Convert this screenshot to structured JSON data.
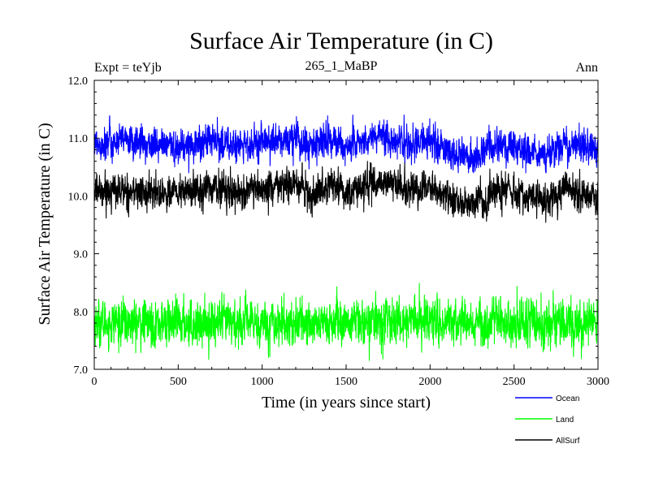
{
  "chart_data": {
    "type": "line",
    "title": "Surface Air Temperature (in C)",
    "subtitle": "265_1_MaBP",
    "experiment_label": "Expt = teYjb",
    "period_label": "Ann",
    "xlabel": "Time (in years since start)",
    "ylabel": "Surface Air Temperature (in C)",
    "xlim": [
      0,
      3000
    ],
    "ylim": [
      7.0,
      12.0
    ],
    "x_ticks": [
      0,
      500,
      1000,
      1500,
      2000,
      2500,
      3000
    ],
    "x_tick_labels": [
      "0",
      "500",
      "1000",
      "1500",
      "2000",
      "2500",
      "3000"
    ],
    "y_ticks": [
      7.0,
      8.0,
      9.0,
      10.0,
      11.0,
      12.0
    ],
    "y_tick_labels": [
      "7.0",
      "8.0",
      "9.0",
      "10.0",
      "11.0",
      "12.0"
    ],
    "grid": false,
    "legend_position": "bottom-right",
    "n_points": 3000,
    "series": [
      {
        "name": "Ocean",
        "color": "#0000ff",
        "mean": 10.9,
        "noise_amplitude": 0.15,
        "min": 10.4,
        "max": 11.4,
        "low_frequency_anomalies": [
          [
            0,
            0.0
          ],
          [
            150,
            0.05
          ],
          [
            300,
            0.0
          ],
          [
            500,
            -0.05
          ],
          [
            700,
            0.05
          ],
          [
            900,
            -0.05
          ],
          [
            1000,
            0.0
          ],
          [
            1200,
            0.1
          ],
          [
            1300,
            -0.1
          ],
          [
            1400,
            0.1
          ],
          [
            1500,
            -0.05
          ],
          [
            1700,
            0.15
          ],
          [
            1900,
            0.0
          ],
          [
            2000,
            0.05
          ],
          [
            2150,
            -0.2
          ],
          [
            2250,
            -0.25
          ],
          [
            2400,
            0.0
          ],
          [
            2500,
            -0.05
          ],
          [
            2700,
            -0.2
          ],
          [
            2800,
            0.0
          ],
          [
            3000,
            -0.1
          ]
        ]
      },
      {
        "name": "Land",
        "color": "#00ff00",
        "mean": 7.8,
        "noise_amplitude": 0.2,
        "min": 7.0,
        "max": 8.5,
        "low_frequency_anomalies": [
          [
            0,
            0.0
          ],
          [
            500,
            0.0
          ],
          [
            1000,
            0.0
          ],
          [
            1500,
            0.0
          ],
          [
            2000,
            0.05
          ],
          [
            2500,
            0.0
          ],
          [
            3000,
            0.0
          ]
        ]
      },
      {
        "name": "AllSurf",
        "color": "#000000",
        "mean": 10.1,
        "noise_amplitude": 0.15,
        "min": 9.5,
        "max": 10.6,
        "low_frequency_anomalies": [
          [
            0,
            0.0
          ],
          [
            150,
            0.0
          ],
          [
            300,
            -0.05
          ],
          [
            500,
            -0.05
          ],
          [
            700,
            0.05
          ],
          [
            900,
            -0.05
          ],
          [
            1000,
            0.0
          ],
          [
            1200,
            0.1
          ],
          [
            1300,
            -0.1
          ],
          [
            1400,
            0.1
          ],
          [
            1500,
            -0.05
          ],
          [
            1700,
            0.15
          ],
          [
            1900,
            0.0
          ],
          [
            2000,
            0.05
          ],
          [
            2150,
            -0.2
          ],
          [
            2250,
            -0.25
          ],
          [
            2400,
            0.0
          ],
          [
            2500,
            -0.05
          ],
          [
            2700,
            -0.2
          ],
          [
            2800,
            0.0
          ],
          [
            3000,
            -0.1
          ]
        ]
      }
    ]
  }
}
